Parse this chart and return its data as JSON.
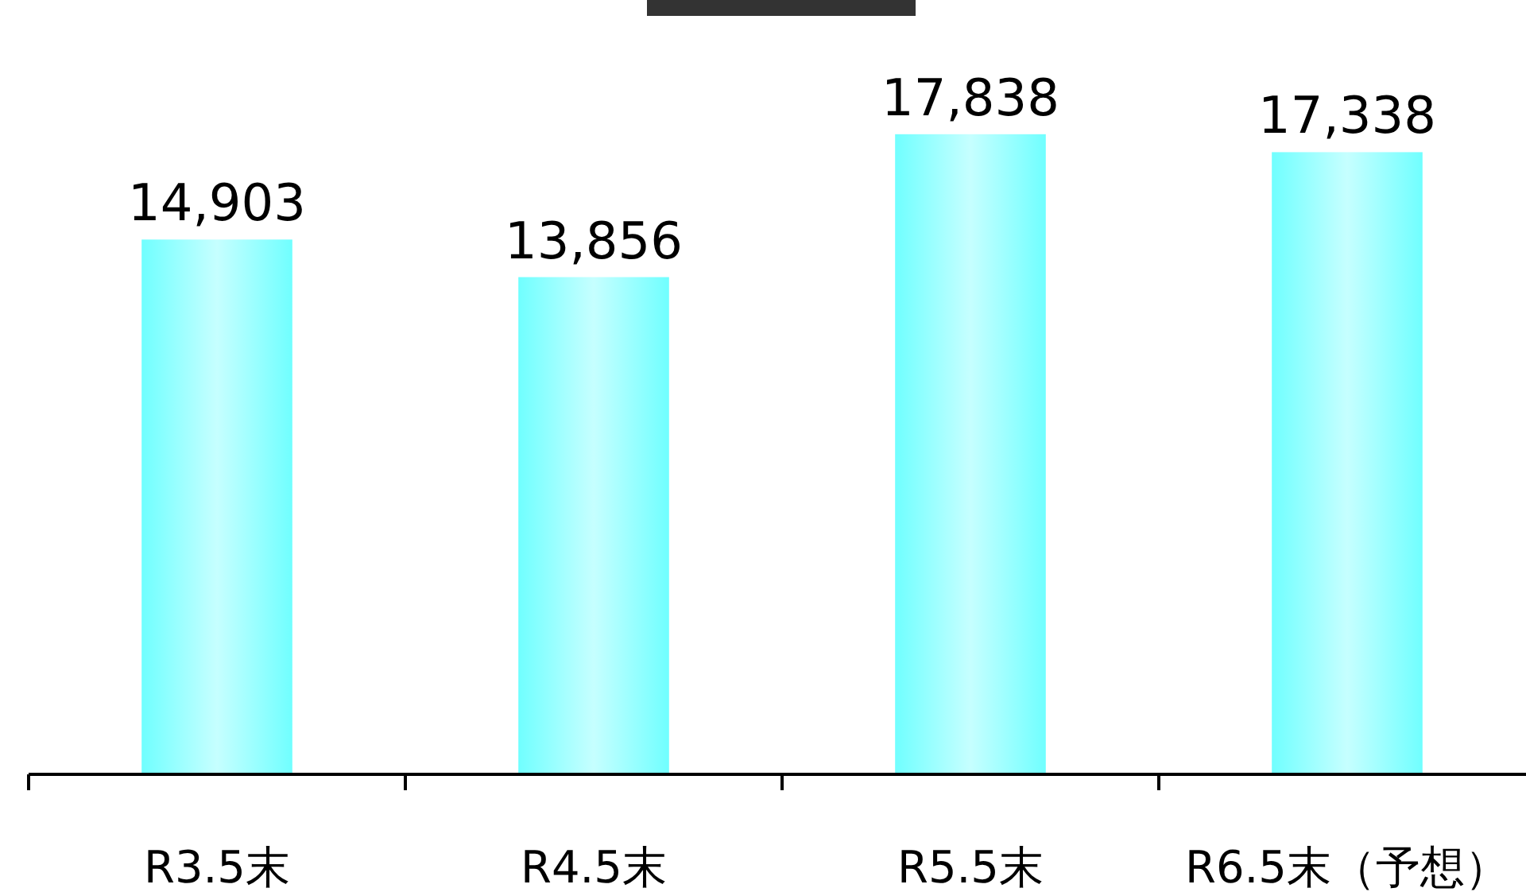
{
  "chart_data": {
    "type": "bar",
    "categories": [
      "R3.5末",
      "R4.5末",
      "R5.5末",
      "R6.5末（予想）"
    ],
    "values": [
      14903,
      13856,
      17838,
      17338
    ],
    "value_labels": [
      "14,903",
      "13,856",
      "17,838",
      "17,338"
    ],
    "color": "#70ffff",
    "grid": false
  }
}
